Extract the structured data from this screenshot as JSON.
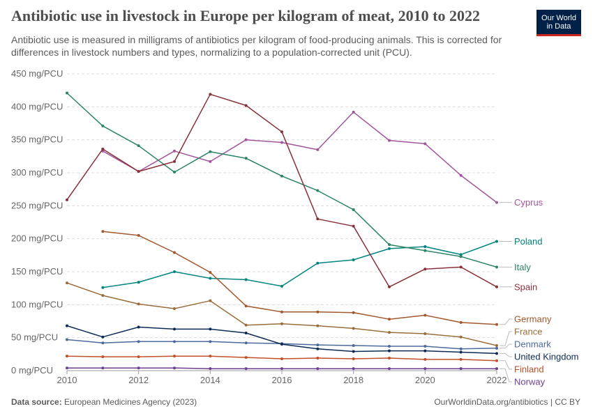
{
  "header": {
    "title": "Antibiotic use in livestock in Europe per kilogram of meat, 2010 to 2022",
    "subtitle": "Antibiotic use is measured in milligrams of antibiotics per kilogram of food-producing animals. This is corrected for differences in livestock numbers and types, normalizing to a population-corrected unit (PCU).",
    "logo_line1": "Our World",
    "logo_line2": "in Data"
  },
  "footer": {
    "source_label": "Data source:",
    "source_text": "European Medicines Agency (2023)",
    "credit": "OurWorldinData.org/antibiotics | CC BY"
  },
  "chart_data": {
    "type": "line",
    "title": "Antibiotic use in livestock in Europe per kilogram of meat, 2010 to 2022",
    "xlabel": "",
    "ylabel": "",
    "xlim": [
      2010,
      2022
    ],
    "ylim": [
      0,
      450
    ],
    "x_ticks": [
      2010,
      2012,
      2014,
      2016,
      2018,
      2020,
      2022
    ],
    "y_ticks": [
      0,
      50,
      100,
      150,
      200,
      250,
      300,
      350,
      400,
      450
    ],
    "y_tick_labels": [
      "0 mg/PCU",
      "50 mg/PCU",
      "100 mg/PCU",
      "150 mg/PCU",
      "200 mg/PCU",
      "250 mg/PCU",
      "300 mg/PCU",
      "350 mg/PCU",
      "400 mg/PCU",
      "450 mg/PCU"
    ],
    "grid": true,
    "legend": "right",
    "series": [
      {
        "name": "Cyprus",
        "color": "#a2559c",
        "x": [
          2011,
          2012,
          2013,
          2014,
          2015,
          2016,
          2017,
          2018,
          2019,
          2020,
          2021,
          2022
        ],
        "values": [
          333,
          302,
          333,
          317,
          350,
          346,
          335,
          392,
          349,
          344,
          296,
          255
        ]
      },
      {
        "name": "Poland",
        "color": "#00847e",
        "x": [
          2011,
          2012,
          2013,
          2014,
          2015,
          2016,
          2017,
          2018,
          2019,
          2020,
          2021,
          2022
        ],
        "values": [
          126,
          134,
          150,
          140,
          138,
          128,
          163,
          168,
          185,
          188,
          176,
          196
        ]
      },
      {
        "name": "Italy",
        "color": "#2c8465",
        "x": [
          2010,
          2011,
          2012,
          2013,
          2014,
          2015,
          2016,
          2017,
          2018,
          2019,
          2020,
          2021,
          2022
        ],
        "values": [
          421,
          371,
          341,
          301,
          332,
          322,
          295,
          273,
          244,
          191,
          182,
          173,
          157
        ]
      },
      {
        "name": "Spain",
        "color": "#883039",
        "x": [
          2010,
          2011,
          2012,
          2013,
          2014,
          2015,
          2016,
          2017,
          2018,
          2019,
          2020,
          2021,
          2022
        ],
        "values": [
          259,
          336,
          302,
          317,
          419,
          402,
          362,
          230,
          219,
          127,
          154,
          157,
          127
        ]
      },
      {
        "name": "Germany",
        "color": "#a2592d",
        "x": [
          2011,
          2012,
          2013,
          2014,
          2015,
          2016,
          2017,
          2018,
          2019,
          2020,
          2021,
          2022
        ],
        "values": [
          211,
          205,
          179,
          149,
          98,
          89,
          89,
          88,
          78,
          84,
          73,
          70
        ]
      },
      {
        "name": "France",
        "color": "#996d39",
        "x": [
          2010,
          2011,
          2012,
          2013,
          2014,
          2015,
          2016,
          2017,
          2018,
          2019,
          2020,
          2021,
          2022
        ],
        "values": [
          133,
          114,
          101,
          94,
          106,
          69,
          71,
          68,
          64,
          58,
          56,
          51,
          38
        ]
      },
      {
        "name": "Denmark",
        "color": "#4c6a9c",
        "x": [
          2010,
          2011,
          2012,
          2013,
          2014,
          2015,
          2016,
          2017,
          2018,
          2019,
          2020,
          2021,
          2022
        ],
        "values": [
          47,
          42,
          44,
          44,
          44,
          42,
          41,
          39,
          38,
          37,
          37,
          33,
          34
        ]
      },
      {
        "name": "United Kingdom",
        "color": "#0b2b56",
        "x": [
          2010,
          2011,
          2012,
          2013,
          2014,
          2015,
          2016,
          2017,
          2018,
          2019,
          2020,
          2021,
          2022
        ],
        "values": [
          68,
          51,
          66,
          63,
          63,
          57,
          40,
          33,
          29,
          30,
          30,
          28,
          26
        ]
      },
      {
        "name": "Finland",
        "color": "#c15028",
        "x": [
          2010,
          2011,
          2012,
          2013,
          2014,
          2015,
          2016,
          2017,
          2018,
          2019,
          2020,
          2021,
          2022
        ],
        "values": [
          22,
          21,
          21,
          22,
          22,
          20,
          18,
          19,
          18,
          19,
          17,
          17,
          15
        ]
      },
      {
        "name": "Norway",
        "color": "#6d3e91",
        "x": [
          2010,
          2011,
          2012,
          2013,
          2014,
          2015,
          2016,
          2017,
          2018,
          2019,
          2020,
          2021,
          2022
        ],
        "values": [
          4,
          4,
          4,
          4,
          3,
          3,
          3,
          3,
          3,
          3,
          3,
          3,
          3
        ]
      }
    ]
  }
}
